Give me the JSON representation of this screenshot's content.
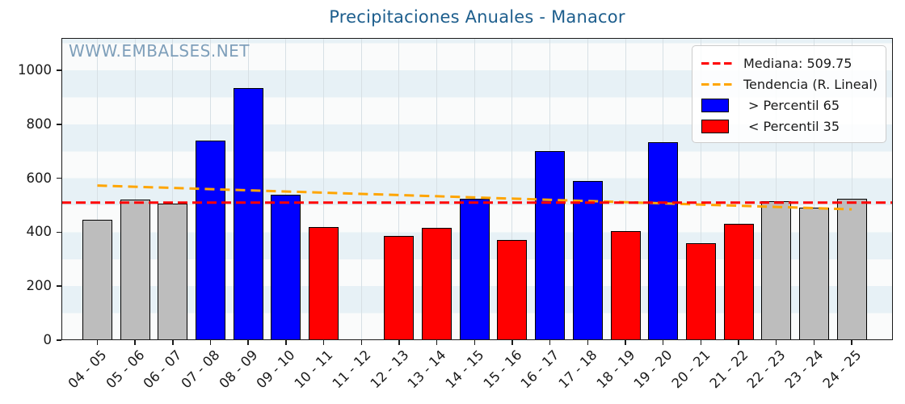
{
  "page": {
    "title": "Precipitaciones Anuales - Manacor",
    "watermark": "WWW.EMBALSES.NET"
  },
  "colors": {
    "title": "#1d5e8d",
    "watermark": "#7e9fba",
    "bar_above_p65": "#0000ff",
    "bar_below_p35": "#ff0000",
    "bar_mid": "#bdbdbd",
    "bar_edge": "#000000",
    "median_line": "#ff0000",
    "trend_line": "#ffa500",
    "band_blue": "#e7f1f6",
    "band_white": "#fafbfb",
    "gridline": "#d7e0e5",
    "axis": "#1a1a1a"
  },
  "legend": {
    "items": [
      {
        "name": "median",
        "swatch": "dash",
        "color": "#ff0000",
        "label": "Mediana: 509.75"
      },
      {
        "name": "trend",
        "swatch": "dash",
        "color": "#ffa500",
        "label": "Tendencia (R. Lineal)"
      },
      {
        "name": "above-p65",
        "swatch": "rect",
        "color": "#0000ff",
        "label": "> Percentil 65"
      },
      {
        "name": "below-p35",
        "swatch": "rect",
        "color": "#ff0000",
        "label": "< Percentil 35"
      }
    ]
  },
  "chart_data": {
    "type": "bar",
    "title": "Precipitaciones Anuales - Manacor",
    "xlabel": "",
    "ylabel": "",
    "categories": [
      "04 - 05",
      "05 - 06",
      "06 - 07",
      "07 - 08",
      "08 - 09",
      "09 - 10",
      "10 - 11",
      "11 - 12",
      "12 - 13",
      "13 - 14",
      "14 - 15",
      "15 - 16",
      "16 - 17",
      "17 - 18",
      "18 - 19",
      "19 - 20",
      "20 - 21",
      "21 - 22",
      "22 - 23",
      "23 - 24",
      "24 - 25"
    ],
    "values": [
      445,
      520,
      505,
      740,
      935,
      540,
      420,
      null,
      385,
      415,
      525,
      370,
      700,
      590,
      405,
      735,
      360,
      430,
      515,
      490,
      525
    ],
    "bar_classes": [
      "mid",
      "mid",
      "mid",
      "above",
      "above",
      "above",
      "below",
      "none",
      "below",
      "below",
      "above",
      "below",
      "above",
      "above",
      "below",
      "above",
      "below",
      "below",
      "mid",
      "mid",
      "mid"
    ],
    "median": 509.75,
    "trend_linear": {
      "x_start": "04 - 05",
      "y_start": 573,
      "x_end": "24 - 25",
      "y_end": 485
    },
    "ylim": [
      0,
      1120
    ],
    "yticks": [
      0,
      200,
      400,
      600,
      800,
      1000
    ],
    "grid": "vertical",
    "background_bands": "horizontal stripes every 100 units",
    "legend_position": "upper right",
    "watermark": "WWW.EMBALSES.NET"
  }
}
